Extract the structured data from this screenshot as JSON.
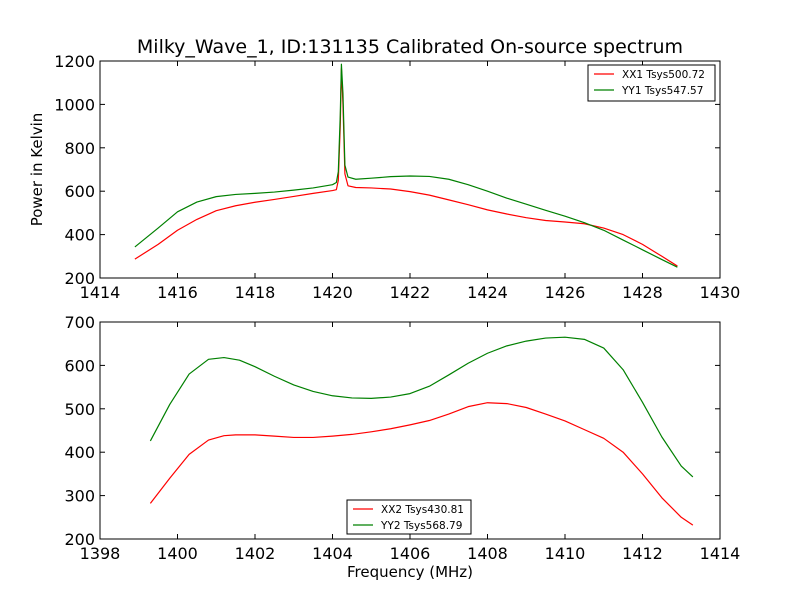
{
  "title": "Milky_Wave_1, ID:131135 Calibrated On-source spectrum",
  "colors": {
    "red": "#ff0000",
    "green": "#008000"
  },
  "chart_data": [
    {
      "type": "line",
      "xlabel": "",
      "ylabel": "Power in Kelvin",
      "xlim": [
        1414,
        1430
      ],
      "ylim": [
        200,
        1200
      ],
      "xticks": [
        1414,
        1416,
        1418,
        1420,
        1422,
        1424,
        1426,
        1428,
        1430
      ],
      "yticks": [
        200,
        400,
        600,
        800,
        1000,
        1200
      ],
      "legend_position": "top-right",
      "grid": false,
      "series": [
        {
          "name": "XX1 Tsys500.72",
          "color": "#ff0000",
          "points": [
            [
              1414.9,
              287
            ],
            [
              1415.5,
              355
            ],
            [
              1416.0,
              420
            ],
            [
              1416.5,
              470
            ],
            [
              1417.0,
              510
            ],
            [
              1417.5,
              533
            ],
            [
              1418.0,
              549
            ],
            [
              1418.5,
              562
            ],
            [
              1419.0,
              576
            ],
            [
              1419.5,
              590
            ],
            [
              1420.0,
              603
            ],
            [
              1420.1,
              607
            ],
            [
              1420.15,
              650
            ],
            [
              1420.2,
              900
            ],
            [
              1420.23,
              1165
            ],
            [
              1420.27,
              1000
            ],
            [
              1420.32,
              680
            ],
            [
              1420.4,
              625
            ],
            [
              1420.6,
              617
            ],
            [
              1421.0,
              615
            ],
            [
              1421.5,
              610
            ],
            [
              1422.0,
              598
            ],
            [
              1422.5,
              582
            ],
            [
              1423.0,
              560
            ],
            [
              1423.5,
              538
            ],
            [
              1424.0,
              514
            ],
            [
              1424.5,
              495
            ],
            [
              1425.0,
              478
            ],
            [
              1425.5,
              465
            ],
            [
              1426.0,
              458
            ],
            [
              1426.5,
              450
            ],
            [
              1427.0,
              430
            ],
            [
              1427.5,
              400
            ],
            [
              1428.0,
              355
            ],
            [
              1428.5,
              300
            ],
            [
              1428.9,
              255
            ]
          ]
        },
        {
          "name": "YY1 Tsys547.57",
          "color": "#008000",
          "points": [
            [
              1414.9,
              343
            ],
            [
              1415.5,
              430
            ],
            [
              1416.0,
              505
            ],
            [
              1416.5,
              550
            ],
            [
              1417.0,
              575
            ],
            [
              1417.5,
              585
            ],
            [
              1418.0,
              590
            ],
            [
              1418.5,
              596
            ],
            [
              1419.0,
              605
            ],
            [
              1419.5,
              615
            ],
            [
              1420.0,
              630
            ],
            [
              1420.1,
              640
            ],
            [
              1420.15,
              690
            ],
            [
              1420.2,
              950
            ],
            [
              1420.23,
              1185
            ],
            [
              1420.27,
              1050
            ],
            [
              1420.32,
              720
            ],
            [
              1420.4,
              665
            ],
            [
              1420.6,
              655
            ],
            [
              1421.0,
              660
            ],
            [
              1421.5,
              667
            ],
            [
              1422.0,
              670
            ],
            [
              1422.5,
              668
            ],
            [
              1423.0,
              655
            ],
            [
              1423.5,
              630
            ],
            [
              1424.0,
              600
            ],
            [
              1424.5,
              568
            ],
            [
              1425.0,
              540
            ],
            [
              1425.5,
              512
            ],
            [
              1426.0,
              485
            ],
            [
              1426.5,
              455
            ],
            [
              1427.0,
              420
            ],
            [
              1427.5,
              375
            ],
            [
              1428.0,
              330
            ],
            [
              1428.5,
              285
            ],
            [
              1428.9,
              250
            ]
          ]
        }
      ]
    },
    {
      "type": "line",
      "xlabel": "Frequency (MHz)",
      "ylabel": "",
      "xlim": [
        1398,
        1414
      ],
      "ylim": [
        200,
        700
      ],
      "xticks": [
        1398,
        1400,
        1402,
        1404,
        1406,
        1408,
        1410,
        1412,
        1414
      ],
      "yticks": [
        200,
        300,
        400,
        500,
        600,
        700
      ],
      "legend_position": "bottom-center",
      "grid": false,
      "series": [
        {
          "name": "XX2 Tsys430.81",
          "color": "#ff0000",
          "points": [
            [
              1399.3,
              282
            ],
            [
              1399.8,
              340
            ],
            [
              1400.3,
              395
            ],
            [
              1400.8,
              428
            ],
            [
              1401.2,
              438
            ],
            [
              1401.5,
              440
            ],
            [
              1402.0,
              440
            ],
            [
              1402.5,
              437
            ],
            [
              1403.0,
              434
            ],
            [
              1403.5,
              434
            ],
            [
              1404.0,
              437
            ],
            [
              1404.5,
              441
            ],
            [
              1405.0,
              447
            ],
            [
              1405.5,
              454
            ],
            [
              1406.0,
              463
            ],
            [
              1406.5,
              473
            ],
            [
              1407.0,
              488
            ],
            [
              1407.5,
              505
            ],
            [
              1408.0,
              514
            ],
            [
              1408.5,
              512
            ],
            [
              1409.0,
              503
            ],
            [
              1409.5,
              488
            ],
            [
              1410.0,
              472
            ],
            [
              1410.5,
              452
            ],
            [
              1411.0,
              432
            ],
            [
              1411.5,
              400
            ],
            [
              1412.0,
              350
            ],
            [
              1412.5,
              295
            ],
            [
              1413.0,
              250
            ],
            [
              1413.3,
              232
            ]
          ]
        },
        {
          "name": "YY2 Tsys568.79",
          "color": "#008000",
          "points": [
            [
              1399.3,
              426
            ],
            [
              1399.8,
              510
            ],
            [
              1400.3,
              580
            ],
            [
              1400.8,
              614
            ],
            [
              1401.2,
              618
            ],
            [
              1401.6,
              612
            ],
            [
              1402.0,
              597
            ],
            [
              1402.5,
              575
            ],
            [
              1403.0,
              555
            ],
            [
              1403.5,
              540
            ],
            [
              1404.0,
              530
            ],
            [
              1404.5,
              525
            ],
            [
              1405.0,
              524
            ],
            [
              1405.5,
              527
            ],
            [
              1406.0,
              535
            ],
            [
              1406.5,
              552
            ],
            [
              1407.0,
              578
            ],
            [
              1407.5,
              605
            ],
            [
              1408.0,
              628
            ],
            [
              1408.5,
              645
            ],
            [
              1409.0,
              656
            ],
            [
              1409.5,
              663
            ],
            [
              1410.0,
              665
            ],
            [
              1410.5,
              660
            ],
            [
              1411.0,
              640
            ],
            [
              1411.5,
              590
            ],
            [
              1412.0,
              515
            ],
            [
              1412.5,
              435
            ],
            [
              1413.0,
              368
            ],
            [
              1413.3,
              343
            ]
          ]
        }
      ]
    }
  ]
}
